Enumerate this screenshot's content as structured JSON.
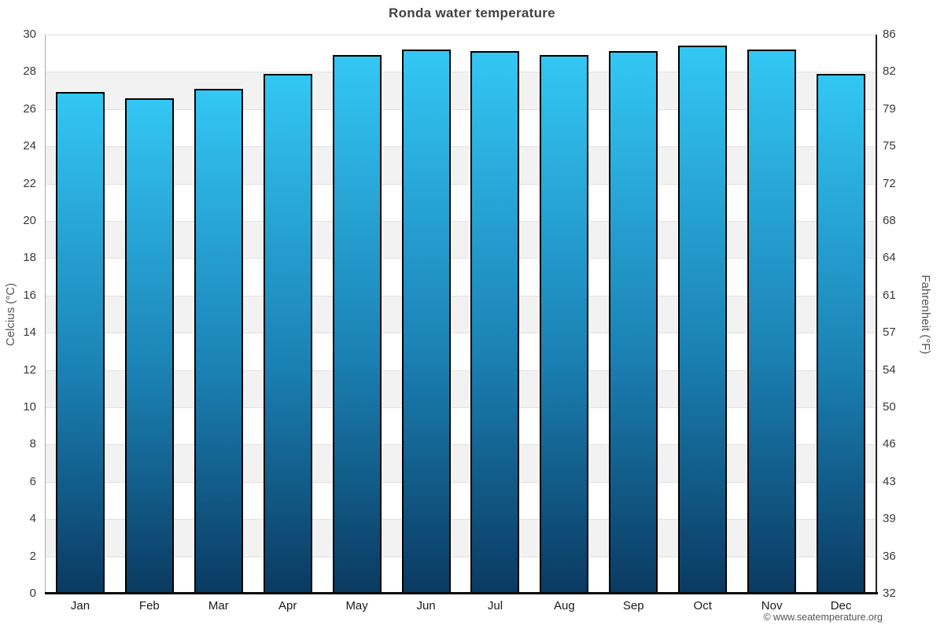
{
  "title": "Ronda water temperature",
  "footer": "© www.seatemperature.org",
  "chart_data": {
    "type": "bar",
    "title": "Ronda water temperature",
    "categories": [
      "Jan",
      "Feb",
      "Mar",
      "Apr",
      "May",
      "Jun",
      "Jul",
      "Aug",
      "Sep",
      "Oct",
      "Nov",
      "Dec"
    ],
    "values": [
      26.9,
      26.6,
      27.1,
      27.9,
      28.9,
      29.2,
      29.1,
      28.9,
      29.1,
      29.4,
      29.2,
      27.9
    ],
    "series_unit": "°C",
    "ylabel_left": "Celcius (°C)",
    "ylabel_right": "Fahrenheit (°F)",
    "xlabel": "",
    "ylim": [
      0,
      30
    ],
    "yticks_celsius": [
      0,
      2,
      4,
      6,
      8,
      10,
      12,
      14,
      16,
      18,
      20,
      22,
      24,
      26,
      28,
      30
    ],
    "yticks_fahrenheit": [
      "32",
      "36",
      "39",
      "43",
      "46",
      "50",
      "54",
      "57",
      "61",
      "64",
      "68",
      "72",
      "75",
      "79",
      "82",
      "86"
    ],
    "grid": "alternating-bands",
    "legend": "none",
    "colors": {
      "bar_gradient_top": "#33c7f4",
      "bar_gradient_bottom": "#0a3a61",
      "bar_border": "#000000",
      "band_gray": "#f2f2f2",
      "band_white": "#ffffff",
      "gridline": "#e2e2e2",
      "axis_left_line": "#aaaaaa",
      "axis_right_line": "#222222",
      "axis_bottom_line": "#0a0a0a",
      "title_text": "#424242",
      "tick_text": "#3a3a3a",
      "footer_text": "#555555"
    }
  }
}
